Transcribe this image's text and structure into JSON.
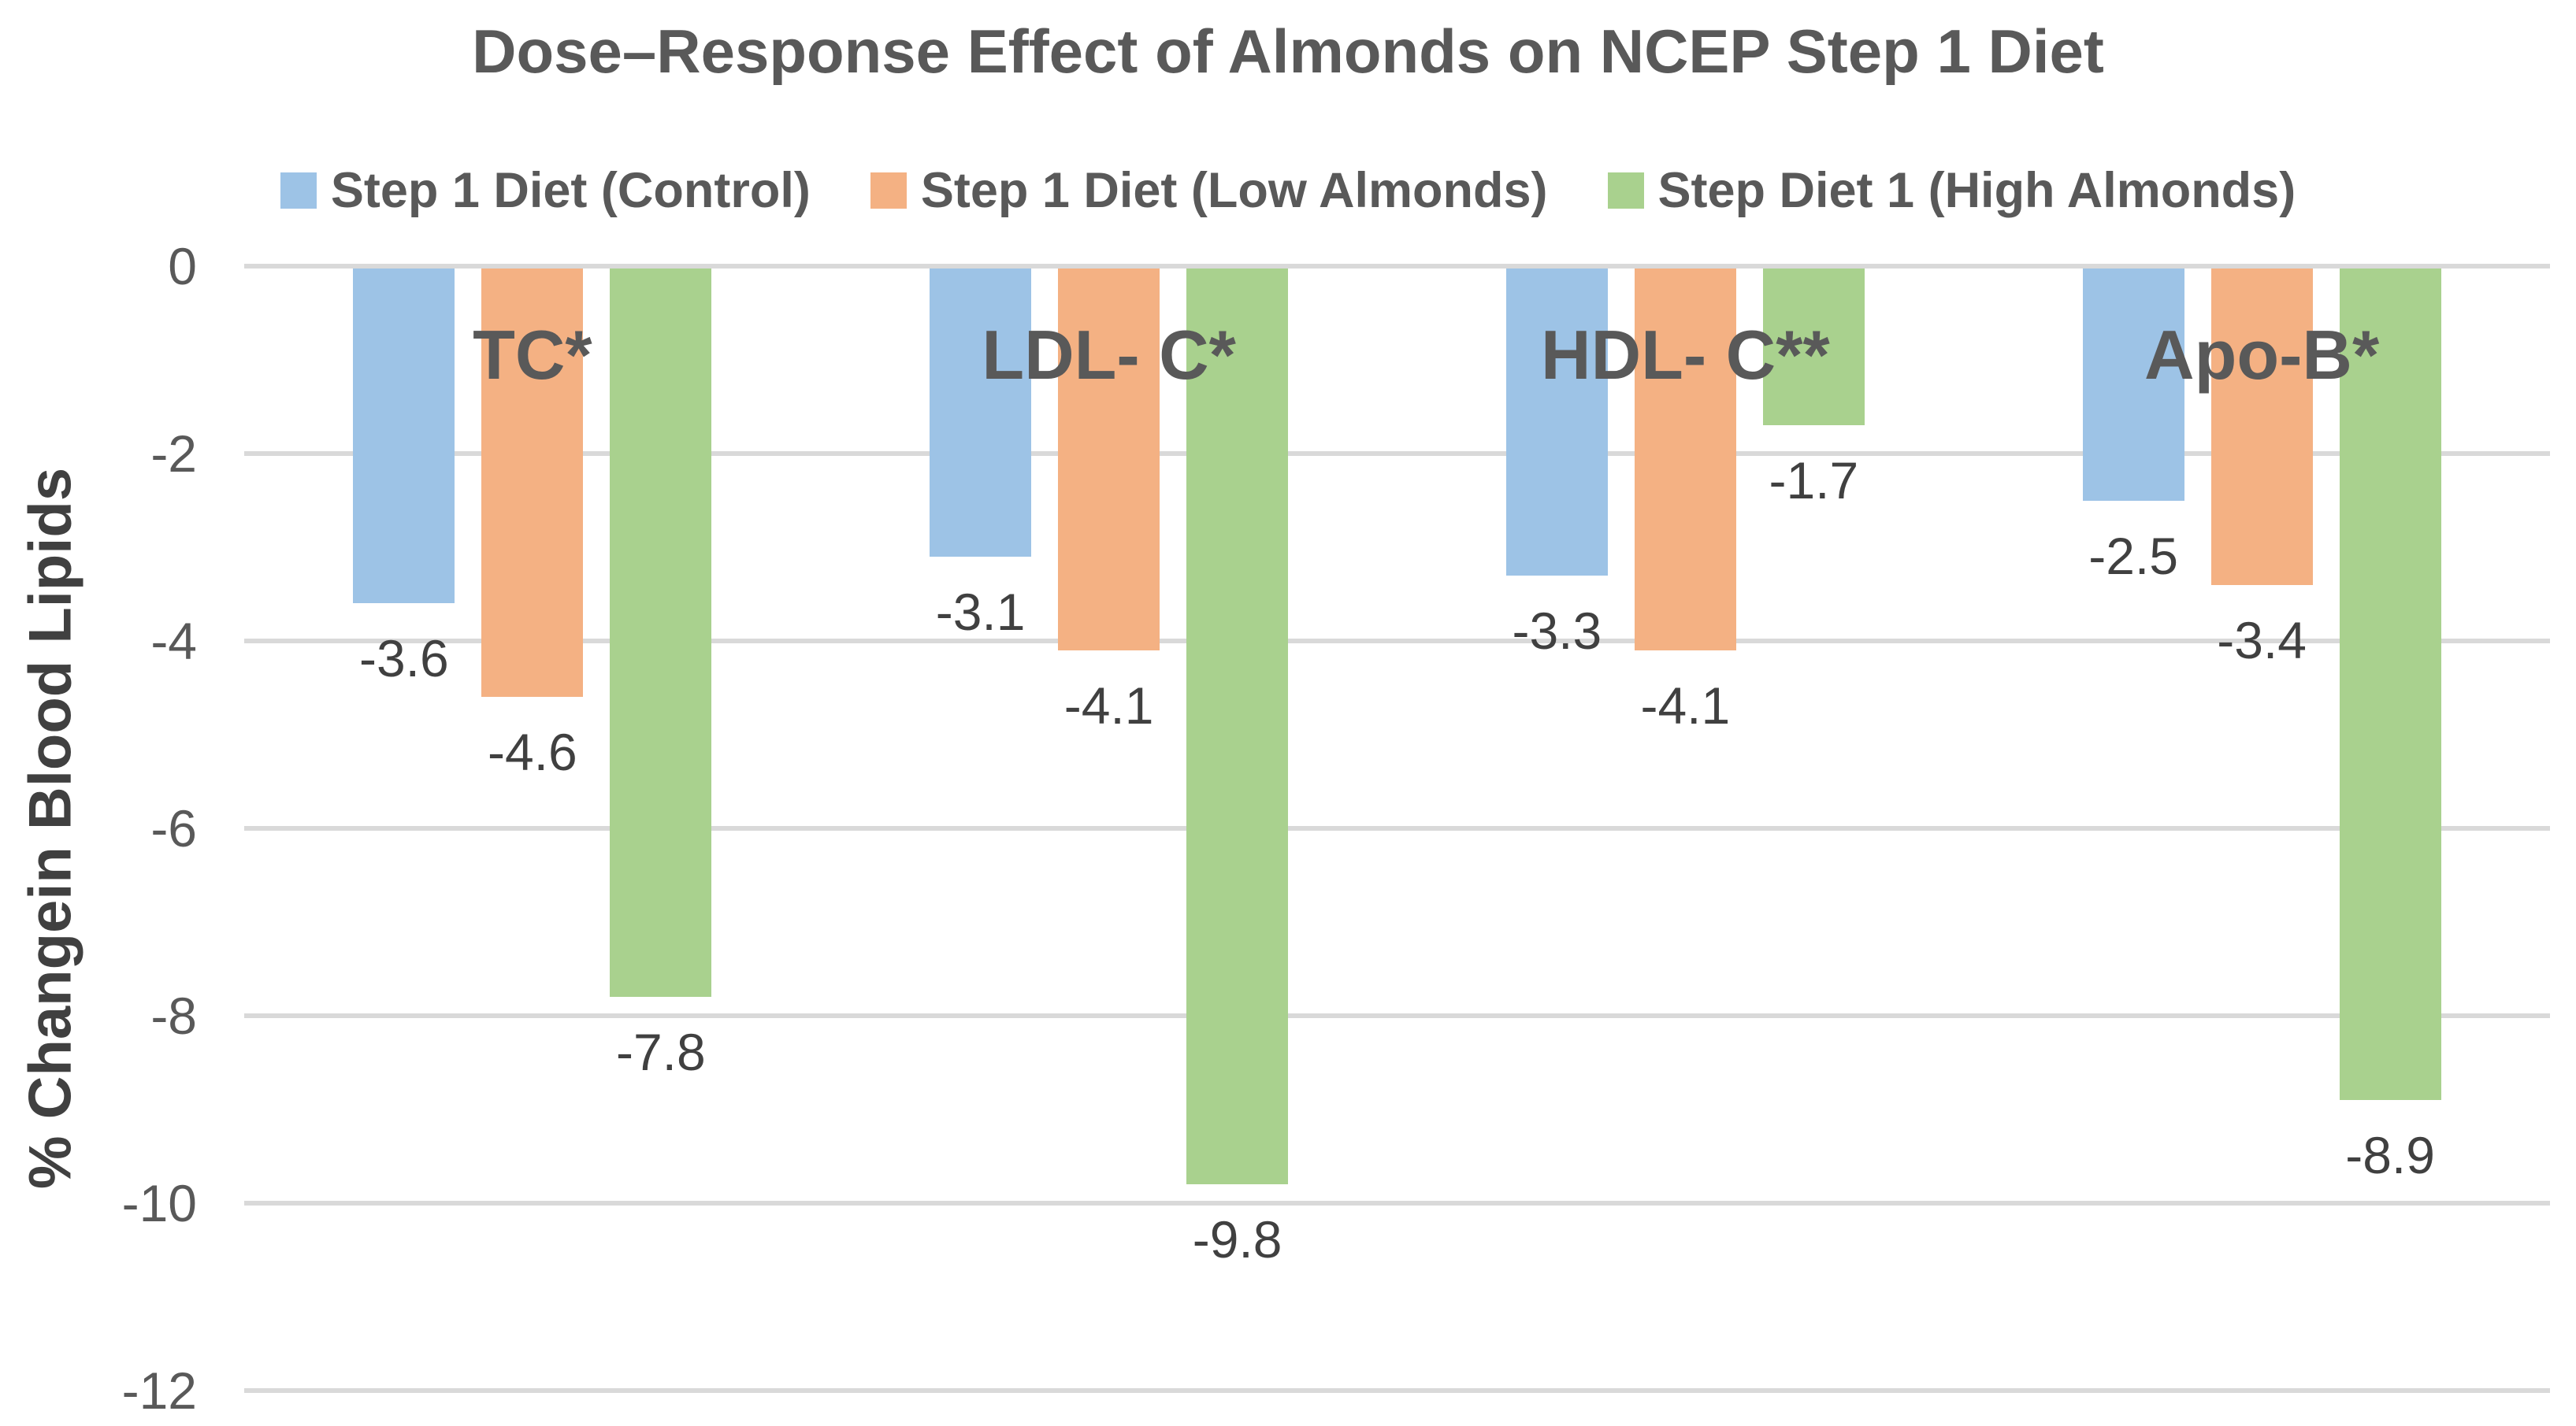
{
  "title": "Dose–Response Effect of Almonds on NCEP Step 1 Diet",
  "y_axis": {
    "label": "% Changein Blood Lipids",
    "ticks": [
      0,
      -2,
      -4,
      -6,
      -8,
      -10,
      -12
    ]
  },
  "colors": {
    "title_text": "#595959",
    "tick_text": "#595959",
    "data_label_text": "#404040",
    "gridline": "#D9D9D9",
    "background": "#FFFFFF"
  },
  "chart_data": {
    "type": "bar",
    "categories": [
      "TC*",
      "LDL- C*",
      "HDL- C**",
      "Apo-B*"
    ],
    "series": [
      {
        "name": "Step 1 Diet (Control)",
        "color": "#9DC3E6",
        "values": [
          -3.6,
          -3.1,
          -3.3,
          -2.5
        ]
      },
      {
        "name": "Step 1 Diet (Low Almonds)",
        "color": "#F4B183",
        "values": [
          -4.6,
          -4.1,
          -4.1,
          -3.4
        ]
      },
      {
        "name": "Step Diet 1 (High Almonds)",
        "color": "#A9D18E",
        "values": [
          -7.8,
          -9.8,
          -1.7,
          -8.9
        ]
      }
    ],
    "title": "Dose–Response Effect of Almonds on NCEP Step 1 Diet",
    "xlabel": "",
    "ylabel": "% Changein Blood Lipids",
    "ylim": [
      -12,
      0
    ],
    "grid": true,
    "legend_position": "top",
    "data_labels_shown": true
  }
}
